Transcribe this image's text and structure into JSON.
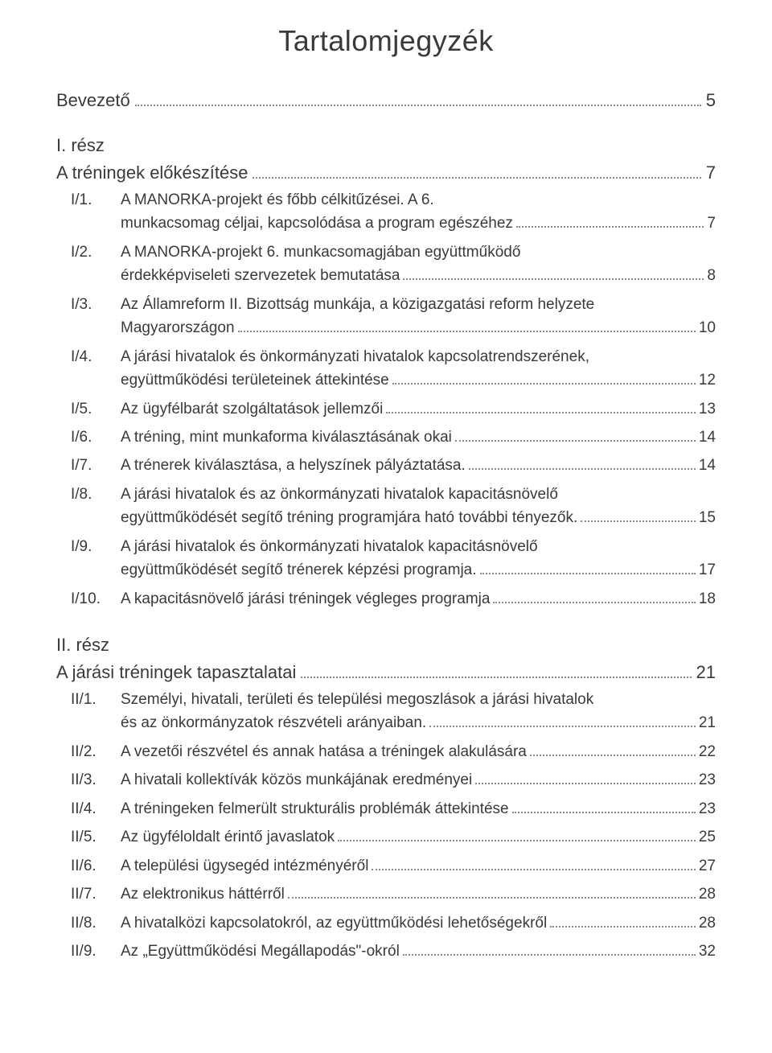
{
  "title": "Tartalomjegyzék",
  "sections": [
    {
      "heading": {
        "label": "Bevezető",
        "page": "5",
        "subtitle": null
      },
      "items": []
    },
    {
      "heading": {
        "label": "I. rész",
        "page": "7",
        "subtitle": "A tréningek előkészítése"
      },
      "items": [
        {
          "num": "I/1.",
          "lines": [
            "A MANORKA-projekt és főbb célkitűzései. A 6.",
            "munkacsomag céljai, kapcsolódása a program egészéhez"
          ],
          "page": "7"
        },
        {
          "num": "I/2.",
          "lines": [
            "A MANORKA-projekt 6. munkacsomagjában együttműködő",
            "érdekképviseleti szervezetek bemutatása"
          ],
          "page": "8"
        },
        {
          "num": "I/3.",
          "lines": [
            "Az Államreform II. Bizottság munkája, a közigazgatási reform helyzete",
            "Magyarországon"
          ],
          "page": "10"
        },
        {
          "num": "I/4.",
          "lines": [
            "A járási hivatalok és önkormányzati hivatalok kapcsolatrendszerének,",
            "együttműködési területeinek áttekintése"
          ],
          "page": "12"
        },
        {
          "num": "I/5.",
          "lines": [
            "Az ügyfélbarát szolgáltatások jellemzői"
          ],
          "page": "13"
        },
        {
          "num": "I/6.",
          "lines": [
            "A tréning, mint munkaforma kiválasztásának okai"
          ],
          "page": "14"
        },
        {
          "num": "I/7.",
          "lines": [
            "A trénerek kiválasztása, a helyszínek pályáztatása."
          ],
          "page": "14"
        },
        {
          "num": "I/8.",
          "lines": [
            "A járási hivatalok és az önkormányzati hivatalok kapacitásnövelő",
            "együttműködését segítő tréning programjára ható további tényezők."
          ],
          "page": "15"
        },
        {
          "num": "I/9.",
          "lines": [
            "A járási hivatalok és önkormányzati hivatalok kapacitásnövelő",
            "együttműködését segítő trénerek képzési programja."
          ],
          "page": "17"
        },
        {
          "num": "I/10.",
          "lines": [
            "A kapacitásnövelő járási tréningek végleges programja"
          ],
          "page": "18"
        }
      ]
    },
    {
      "heading": {
        "label": "II. rész",
        "page": "21",
        "subtitle": "A járási tréningek tapasztalatai"
      },
      "items": [
        {
          "num": "II/1.",
          "lines": [
            "Személyi, hivatali, területi és települési megoszlások a járási hivatalok",
            "és az önkormányzatok részvételi arányaiban."
          ],
          "page": "21"
        },
        {
          "num": "II/2.",
          "lines": [
            "A vezetői részvétel és annak hatása a tréningek alakulására"
          ],
          "page": "22"
        },
        {
          "num": "II/3.",
          "lines": [
            "A hivatali kollektívák közös munkájának eredményei"
          ],
          "page": "23"
        },
        {
          "num": "II/4.",
          "lines": [
            "A tréningeken felmerült strukturális problémák áttekintése"
          ],
          "page": "23"
        },
        {
          "num": "II/5.",
          "lines": [
            "Az ügyféloldalt érintő javaslatok"
          ],
          "page": "25"
        },
        {
          "num": "II/6.",
          "lines": [
            "A települési ügysegéd intézményéről"
          ],
          "page": "27"
        },
        {
          "num": "II/7.",
          "lines": [
            "Az elektronikus háttérről"
          ],
          "page": "28"
        },
        {
          "num": "II/8.",
          "lines": [
            "A hivatalközi kapcsolatokról, az együttműködési lehetőségekről"
          ],
          "page": "28"
        },
        {
          "num": "II/9.",
          "lines": [
            "Az „Együttműködési Megállapodás\"-okról"
          ],
          "page": "32"
        }
      ]
    }
  ]
}
